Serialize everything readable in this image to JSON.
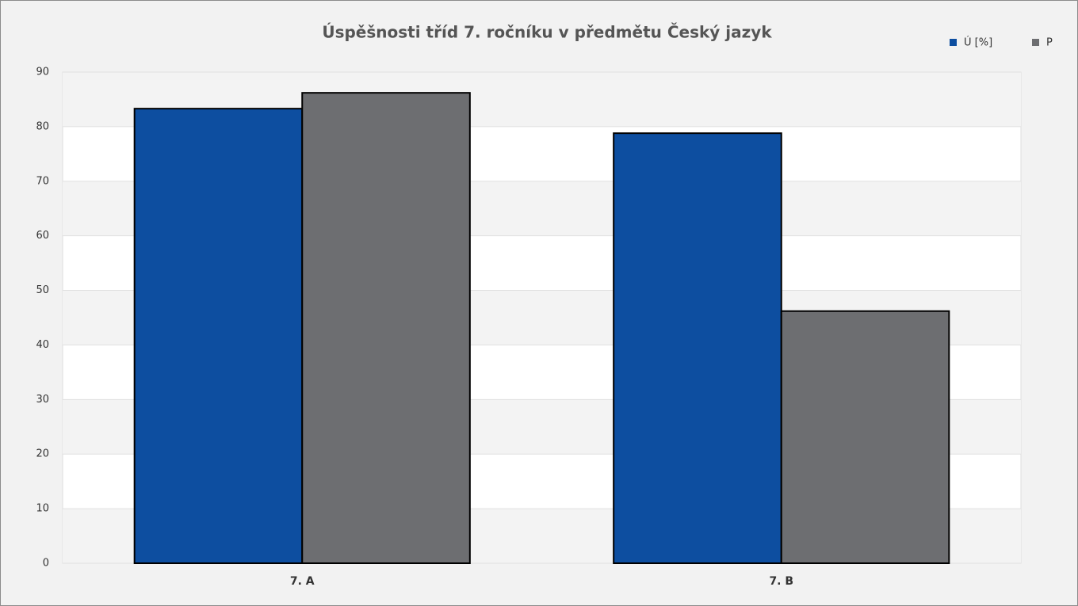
{
  "chart_data": {
    "type": "bar",
    "title": "Úspěšnosti tříd 7. ročníku v předmětu Český jazyk",
    "categories": [
      "7. A",
      "7. B"
    ],
    "series": [
      {
        "name": "Ú [%]",
        "color": "#0d4ea0",
        "values": [
          83.3,
          78.8
        ]
      },
      {
        "name": "P",
        "color": "#6d6e71",
        "values": [
          86.2,
          46.2
        ]
      }
    ],
    "ylim": [
      0,
      90
    ],
    "yticks": [
      0,
      10,
      20,
      30,
      40,
      50,
      60,
      70,
      80,
      90
    ],
    "grid": true,
    "legend": "top-right"
  }
}
